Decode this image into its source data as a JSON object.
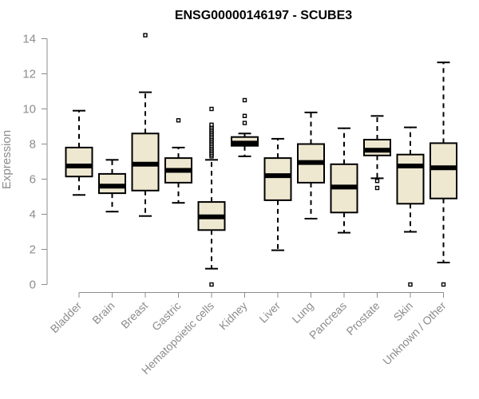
{
  "chart_data": {
    "type": "boxplot",
    "title": "ENSG00000146197 - SCUBE3",
    "xlabel": "",
    "ylabel": "Expression",
    "ylim": [
      0,
      14
    ],
    "yticks": [
      0,
      2,
      4,
      6,
      8,
      10,
      12,
      14
    ],
    "grid": false,
    "colors": {
      "box_fill": "#efe8d1",
      "box_stroke": "#000000",
      "axis": "#8c8c8c"
    },
    "categories": [
      "Bladder",
      "Brain",
      "Breast",
      "Gastric",
      "Hematopoietic cells",
      "Kidney",
      "Liver",
      "Lung",
      "Pancreas",
      "Prostate",
      "Skin",
      "Unknown / Other"
    ],
    "boxes": [
      {
        "category": "Bladder",
        "whisker_low": 5.1,
        "q1": 6.15,
        "median": 6.75,
        "q3": 7.8,
        "whisker_high": 9.9,
        "outliers": []
      },
      {
        "category": "Brain",
        "whisker_low": 4.15,
        "q1": 5.2,
        "median": 5.6,
        "q3": 6.3,
        "whisker_high": 7.1,
        "outliers": []
      },
      {
        "category": "Breast",
        "whisker_low": 3.9,
        "q1": 5.35,
        "median": 6.85,
        "q3": 8.6,
        "whisker_high": 10.95,
        "outliers": [
          14.2
        ]
      },
      {
        "category": "Gastric",
        "whisker_low": 4.65,
        "q1": 5.8,
        "median": 6.5,
        "q3": 7.2,
        "whisker_high": 7.8,
        "outliers": [
          9.35
        ]
      },
      {
        "category": "Hematopoietic cells",
        "whisker_low": 0.9,
        "q1": 3.1,
        "median": 3.85,
        "q3": 4.7,
        "whisker_high": 7.1,
        "outliers": [
          0.0,
          7.3,
          7.4,
          7.5,
          7.6,
          7.7,
          7.8,
          7.9,
          8.0,
          8.1,
          8.2,
          8.3,
          8.4,
          8.5,
          8.6,
          8.7,
          8.8,
          8.9,
          9.0,
          9.1,
          10.0
        ]
      },
      {
        "category": "Kidney",
        "whisker_low": 7.3,
        "q1": 7.9,
        "median": 8.05,
        "q3": 8.4,
        "whisker_high": 8.6,
        "outliers": [
          9.2,
          9.6,
          10.5
        ]
      },
      {
        "category": "Liver",
        "whisker_low": 1.95,
        "q1": 4.8,
        "median": 6.2,
        "q3": 7.2,
        "whisker_high": 8.3,
        "outliers": []
      },
      {
        "category": "Lung",
        "whisker_low": 3.75,
        "q1": 5.8,
        "median": 6.95,
        "q3": 8.0,
        "whisker_high": 9.8,
        "outliers": []
      },
      {
        "category": "Pancreas",
        "whisker_low": 2.95,
        "q1": 4.1,
        "median": 5.55,
        "q3": 6.85,
        "whisker_high": 8.9,
        "outliers": []
      },
      {
        "category": "Prostate",
        "whisker_low": 6.05,
        "q1": 7.35,
        "median": 7.65,
        "q3": 8.25,
        "whisker_high": 9.6,
        "outliers": [
          5.5,
          5.9
        ]
      },
      {
        "category": "Skin",
        "whisker_low": 3.0,
        "q1": 4.6,
        "median": 6.75,
        "q3": 7.4,
        "whisker_high": 8.95,
        "outliers": [
          0.0
        ]
      },
      {
        "category": "Unknown / Other",
        "whisker_low": 1.25,
        "q1": 4.9,
        "median": 6.65,
        "q3": 8.05,
        "whisker_high": 12.65,
        "outliers": [
          0.0
        ]
      }
    ]
  }
}
